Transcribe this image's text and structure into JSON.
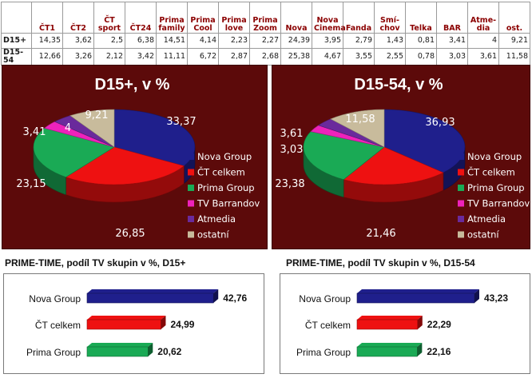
{
  "table": {
    "columns": [
      "ČT1",
      "ČT2",
      "ČT sport",
      "ČT24",
      "Prima family",
      "Prima Cool",
      "Prima love",
      "Prima Zoom",
      "Nova",
      "Nova Cinema",
      "Fanda",
      "Smí-chov",
      "Telka",
      "BAR",
      "Atme-dia",
      "ost."
    ],
    "rows": [
      {
        "label": "D15+",
        "values": [
          "14,35",
          "3,62",
          "2,5",
          "6,38",
          "14,51",
          "4,14",
          "2,23",
          "2,27",
          "24,39",
          "3,95",
          "2,79",
          "1,43",
          "0,81",
          "3,41",
          "4",
          "9,21"
        ]
      },
      {
        "label": "D15-54",
        "values": [
          "12,66",
          "3,26",
          "2,12",
          "3,42",
          "11,11",
          "6,72",
          "2,87",
          "2,68",
          "25,38",
          "4,67",
          "3,55",
          "2,55",
          "0,78",
          "3,03",
          "3,61",
          "11,58"
        ]
      }
    ]
  },
  "colors": {
    "Nova Group": "#1f1f8c",
    "ČT celkem": "#ee1111",
    "Prima Group": "#1aaa55",
    "TV Barrandov": "#ee22bb",
    "Atmedia": "#6a2a9c",
    "ostatní": "#c8bb9c",
    "panel_bg": "#5c0a0a"
  },
  "chart_data": [
    {
      "type": "pie",
      "title": "D15+, v %",
      "categories": [
        "Nova Group",
        "ČT celkem",
        "Prima Group",
        "TV Barrandov",
        "Atmedia",
        "ostatní"
      ],
      "values": [
        33.37,
        26.85,
        23.15,
        3.41,
        4,
        9.21
      ],
      "labels": [
        "33,37",
        "26,85",
        "23,15",
        "3,41",
        "4",
        "9,21"
      ],
      "legend": "right"
    },
    {
      "type": "pie",
      "title": "D15-54, v %",
      "categories": [
        "Nova Group",
        "ČT celkem",
        "Prima Group",
        "TV Barrandov",
        "Atmedia",
        "ostatní"
      ],
      "values": [
        36.93,
        21.46,
        23.38,
        3.03,
        3.61,
        11.58
      ],
      "labels": [
        "36,93",
        "21,46",
        "23,38",
        "3,03",
        "3,61",
        "11,58"
      ],
      "legend": "right"
    },
    {
      "type": "bar",
      "orientation": "horizontal",
      "title": "PRIME-TIME, podíl TV skupin v %, D15+",
      "categories": [
        "Nova Group",
        "ČT celkem",
        "Prima Group"
      ],
      "values": [
        42.76,
        24.99,
        20.62
      ],
      "labels": [
        "42,76",
        "24,99",
        "20,62"
      ],
      "xlim": [
        0,
        50
      ]
    },
    {
      "type": "bar",
      "orientation": "horizontal",
      "title": "PRIME-TIME, podíl TV skupin v %, D15-54",
      "categories": [
        "Nova Group",
        "ČT celkem",
        "Prima Group"
      ],
      "values": [
        43.23,
        22.29,
        22.16
      ],
      "labels": [
        "43,23",
        "22,29",
        "22,16"
      ],
      "xlim": [
        0,
        50
      ]
    }
  ]
}
